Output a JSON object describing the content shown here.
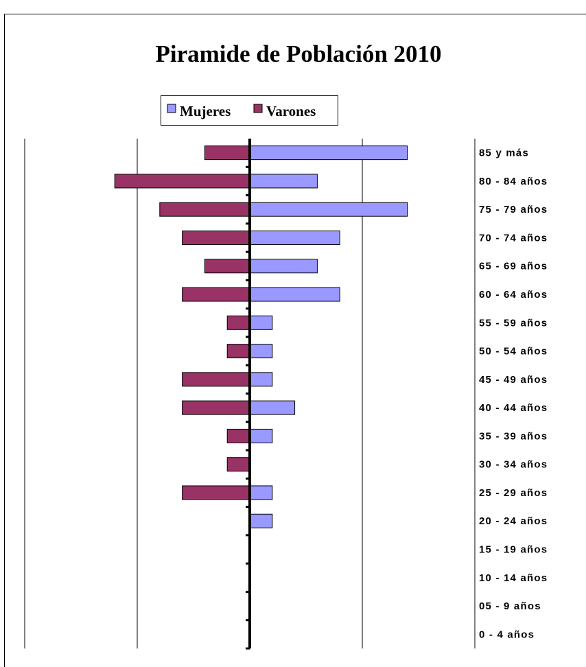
{
  "chart_data": {
    "type": "pyramid",
    "title": "Piramide de Población 2010",
    "categories": [
      "85 y más",
      "80 - 84 años",
      "75 - 79 años",
      "70 - 74 años",
      "65 - 69 años",
      "60 - 64 años",
      "55 - 59 años",
      "50 - 54 años",
      "45 - 49 años",
      "40 - 44 años",
      "35 - 39 años",
      "30 - 34 años",
      "25 - 29 años",
      "20 - 24 años",
      "15 - 19 años",
      "10 - 14 años",
      "05 - 9 años",
      "0 - 4 años"
    ],
    "series": [
      {
        "name": "Mujeres",
        "color": "#9999ff",
        "side": "right",
        "values": [
          7,
          3,
          7,
          4,
          3,
          4,
          1,
          1,
          1,
          2,
          1,
          0,
          1,
          1,
          0,
          0,
          0,
          0
        ]
      },
      {
        "name": "Varones",
        "color": "#993366",
        "side": "left",
        "values": [
          2,
          6,
          4,
          3,
          2,
          3,
          1,
          1,
          3,
          3,
          1,
          1,
          3,
          0,
          0,
          0,
          0,
          0
        ]
      }
    ],
    "xlim": [
      0,
      10
    ],
    "xticks": [
      0,
      5,
      10
    ],
    "grid": true
  }
}
